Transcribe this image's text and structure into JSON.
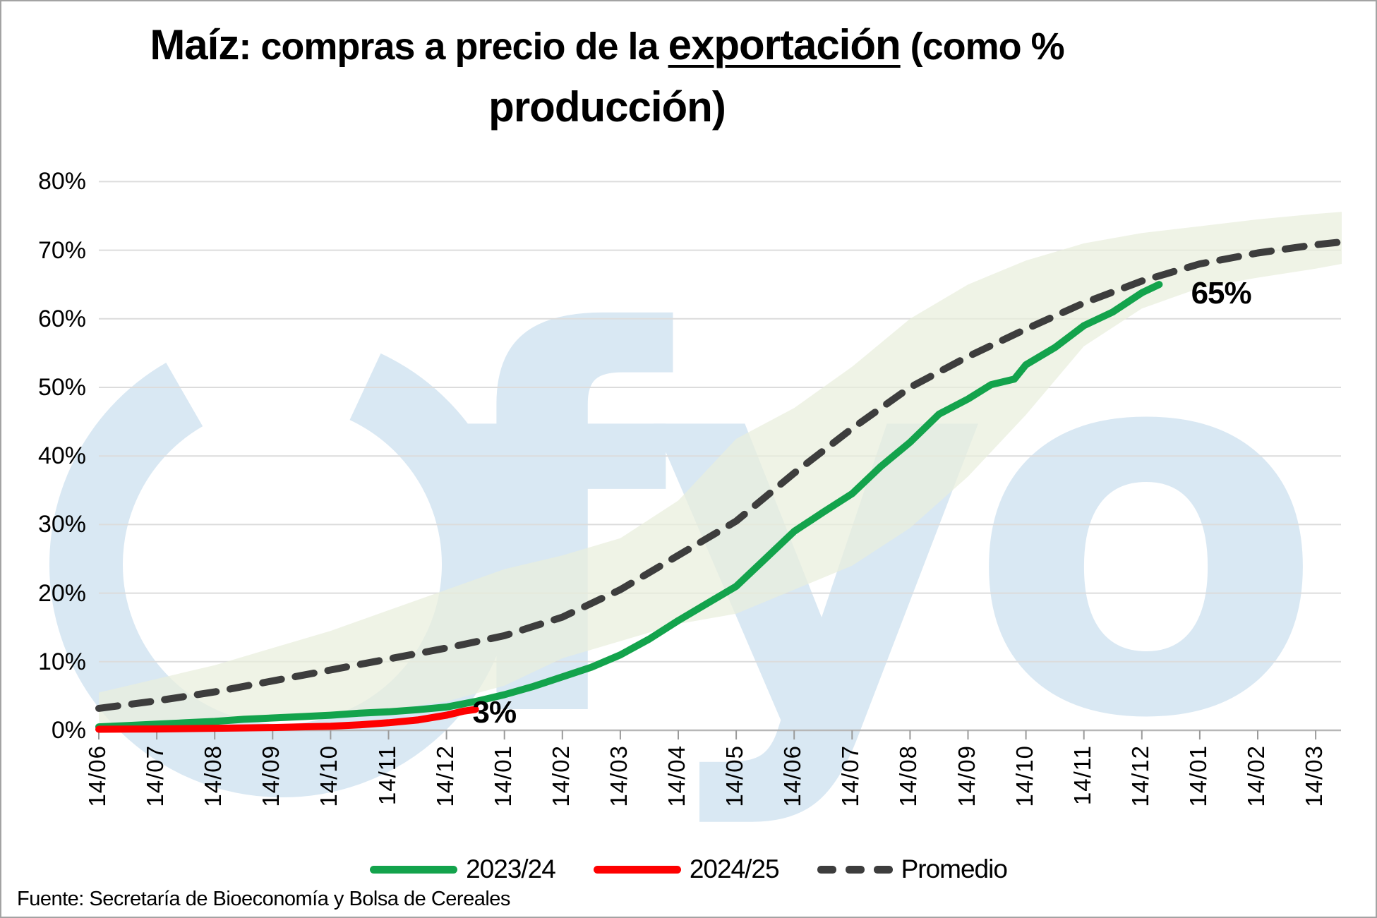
{
  "title": {
    "part_product": "Maíz",
    "part_mid": ": compras a precio de la ",
    "part_underlined": "exportación",
    "part_tail": " (como % producción)",
    "tail_line1": " (como % ",
    "line2": "producción)"
  },
  "source": "Fuente: Secretaría de Bioeconomía y Bolsa de Cereales",
  "watermark": {
    "text": "fyo",
    "color": "#d9e8f3"
  },
  "colors": {
    "series_2023_24": "#13a34c",
    "series_2024_25": "#fe0000",
    "series_promedio": "#3d3d3d",
    "band_fill": "#e9efdd",
    "gridline": "#dcdcdc",
    "axis_line": "#b7b7b7",
    "tick": "#9a9a9a",
    "text": "#000000"
  },
  "legend": [
    {
      "label": "2023/24",
      "style": "solid",
      "color": "#13a34c"
    },
    {
      "label": "2024/25",
      "style": "solid",
      "color": "#fe0000"
    },
    {
      "label": "Promedio",
      "style": "dashed",
      "color": "#3d3d3d"
    }
  ],
  "chart_data": {
    "type": "line",
    "title": "Maíz: compras a precio de la exportación (como % producción)",
    "ylabel": "",
    "xlabel": "",
    "ylim": [
      0,
      80
    ],
    "grid": "horizontal",
    "legend_position": "bottom",
    "y_tick_labels": [
      "0%",
      "10%",
      "20%",
      "30%",
      "40%",
      "50%",
      "60%",
      "70%",
      "80%"
    ],
    "x_tick_labels": [
      "14/06",
      "14/07",
      "14/08",
      "14/09",
      "14/10",
      "14/11",
      "14/12",
      "14/01",
      "14/02",
      "14/03",
      "14/04",
      "14/05",
      "14/06",
      "14/07",
      "14/08",
      "14/09",
      "14/10",
      "14/11",
      "14/12",
      "14/01",
      "14/02",
      "14/03"
    ],
    "band": {
      "name": "rango min-max historico",
      "color": "#e9efdd",
      "x": [
        0,
        1,
        2,
        3,
        4,
        5,
        6,
        7,
        8,
        9,
        10,
        11,
        12,
        13,
        14,
        15,
        16,
        17,
        18,
        19,
        20,
        21,
        21.45
      ],
      "max": [
        5.5,
        7.5,
        9.5,
        12,
        14.5,
        17.5,
        20.5,
        23.5,
        25.5,
        28,
        33.5,
        42.5,
        47,
        53,
        60,
        65,
        68.5,
        71,
        72.5,
        73.5,
        74.5,
        75.3,
        75.6
      ],
      "min": [
        0.4,
        0.7,
        1.1,
        1.6,
        2.2,
        3.0,
        4.2,
        6.5,
        10.5,
        13,
        15.5,
        17,
        20.5,
        24,
        29.5,
        37,
        46,
        56,
        61.5,
        64.5,
        66,
        67.3,
        68
      ]
    },
    "series": [
      {
        "name": "2023/24",
        "color": "#13a34c",
        "dashed": false,
        "points": [
          [
            0,
            0.5
          ],
          [
            0.5,
            0.7
          ],
          [
            1,
            0.9
          ],
          [
            1.5,
            1.1
          ],
          [
            2,
            1.3
          ],
          [
            2.5,
            1.6
          ],
          [
            3,
            1.8
          ],
          [
            3.5,
            2.0
          ],
          [
            4,
            2.2
          ],
          [
            4.5,
            2.5
          ],
          [
            5,
            2.7
          ],
          [
            5.5,
            3.0
          ],
          [
            6,
            3.4
          ],
          [
            6.5,
            4.2
          ],
          [
            7,
            5.2
          ],
          [
            7.5,
            6.4
          ],
          [
            8,
            7.8
          ],
          [
            8.5,
            9.2
          ],
          [
            9,
            11.0
          ],
          [
            9.5,
            13.3
          ],
          [
            10,
            16.0
          ],
          [
            10.5,
            18.5
          ],
          [
            11,
            21.0
          ],
          [
            11.5,
            25.0
          ],
          [
            12,
            29.0
          ],
          [
            12.5,
            31.8
          ],
          [
            13,
            34.5
          ],
          [
            13.5,
            38.5
          ],
          [
            14,
            42.0
          ],
          [
            14.5,
            46.1
          ],
          [
            15,
            48.3
          ],
          [
            15.4,
            50.4
          ],
          [
            15.8,
            51.2
          ],
          [
            16,
            53.3
          ],
          [
            16.5,
            55.8
          ],
          [
            17,
            59.0
          ],
          [
            17.5,
            61.0
          ],
          [
            18,
            63.8
          ],
          [
            18.3,
            65.0
          ]
        ]
      },
      {
        "name": "2024/25",
        "color": "#fe0000",
        "dashed": false,
        "points": [
          [
            0,
            0.15
          ],
          [
            0.5,
            0.18
          ],
          [
            1,
            0.2
          ],
          [
            1.5,
            0.25
          ],
          [
            2,
            0.3
          ],
          [
            2.5,
            0.35
          ],
          [
            3,
            0.4
          ],
          [
            3.5,
            0.5
          ],
          [
            4,
            0.6
          ],
          [
            4.5,
            0.8
          ],
          [
            5,
            1.1
          ],
          [
            5.5,
            1.5
          ],
          [
            6,
            2.2
          ],
          [
            6.3,
            2.8
          ],
          [
            6.5,
            3.05
          ]
        ]
      },
      {
        "name": "Promedio",
        "color": "#3d3d3d",
        "dashed": true,
        "points": [
          [
            0,
            3.2
          ],
          [
            1,
            4.3
          ],
          [
            2,
            5.6
          ],
          [
            3,
            7.2
          ],
          [
            4,
            8.8
          ],
          [
            5,
            10.4
          ],
          [
            6,
            12.0
          ],
          [
            7,
            13.8
          ],
          [
            8,
            16.5
          ],
          [
            9,
            20.5
          ],
          [
            10,
            25.5
          ],
          [
            11,
            30.5
          ],
          [
            12,
            37.5
          ],
          [
            13,
            44.0
          ],
          [
            14,
            50.0
          ],
          [
            15,
            54.5
          ],
          [
            16,
            58.5
          ],
          [
            17,
            62.3
          ],
          [
            18,
            65.5
          ],
          [
            19,
            68.0
          ],
          [
            20,
            69.6
          ],
          [
            21,
            70.8
          ],
          [
            21.45,
            71.2
          ]
        ]
      }
    ],
    "annotations": [
      {
        "text": "65%",
        "xi": 18.85,
        "value": 63.6
      },
      {
        "text": "3%",
        "xi": 6.45,
        "value": 2.5
      }
    ]
  }
}
